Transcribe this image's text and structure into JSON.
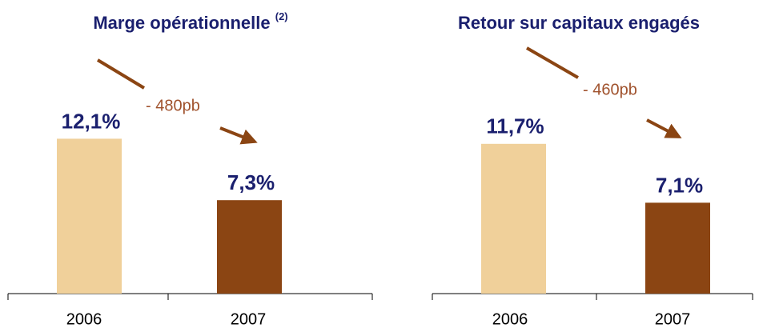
{
  "chart_data": [
    {
      "type": "bar",
      "title": "Marge opérationnelle",
      "title_superscript": "(2)",
      "categories": [
        "2006",
        "2007"
      ],
      "values": [
        12.1,
        7.3
      ],
      "value_labels": [
        "12,1%",
        "7,3%"
      ],
      "colors": [
        "#f0d09a",
        "#8b4513"
      ],
      "annotation": "- 480pb"
    },
    {
      "type": "bar",
      "title": "Retour sur capitaux engagés",
      "categories": [
        "2006",
        "2007"
      ],
      "values": [
        11.7,
        7.1
      ],
      "value_labels": [
        "11,7%",
        "7,1%"
      ],
      "colors": [
        "#f0d09a",
        "#8b4513"
      ],
      "annotation": "- 460pb"
    }
  ]
}
